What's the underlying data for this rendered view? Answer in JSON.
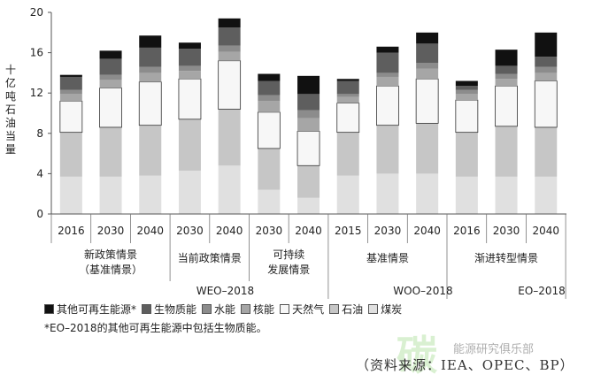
{
  "chart_data": {
    "type": "stacked-bar",
    "ylabel": "十亿吨石油当量",
    "ylim": [
      0,
      20
    ],
    "yticks": [
      0,
      4,
      8,
      12,
      16,
      20
    ],
    "grid": false,
    "legend_position": "bottom",
    "series": [
      {
        "name": "煤炭",
        "color": "#e0e0e0"
      },
      {
        "name": "石油",
        "color": "#c6c6c6"
      },
      {
        "name": "天然气",
        "color": "#f7f7f7"
      },
      {
        "name": "核能",
        "color": "#a6a6a6"
      },
      {
        "name": "水能",
        "color": "#8c8c8c"
      },
      {
        "name": "生物质能",
        "color": "#5e5e5e"
      },
      {
        "name": "其他可再生能源*",
        "color": "#111111"
      }
    ],
    "groups": [
      {
        "name": "新政策情景\n（基准情景）",
        "outlook": "WEO–2018",
        "bars": [
          {
            "year": "2016",
            "values": [
              3.7,
              4.4,
              3.1,
              0.7,
              0.4,
              1.3,
              0.2
            ]
          },
          {
            "year": "2030",
            "values": [
              3.7,
              4.9,
              3.9,
              0.8,
              0.5,
              1.6,
              0.8
            ]
          },
          {
            "year": "2040",
            "values": [
              3.8,
              5.0,
              4.3,
              0.9,
              0.6,
              1.9,
              1.2
            ]
          }
        ]
      },
      {
        "name": "当前政策情景",
        "outlook": "WEO–2018",
        "bars": [
          {
            "year": "2030",
            "values": [
              4.3,
              5.1,
              4.0,
              0.8,
              0.5,
              1.7,
              0.6
            ]
          },
          {
            "year": "2040",
            "values": [
              4.8,
              5.6,
              4.8,
              0.9,
              0.6,
              1.8,
              0.9
            ]
          }
        ]
      },
      {
        "name": "可持续\n发展情景",
        "outlook": "WEO–2018",
        "bars": [
          {
            "year": "2030",
            "values": [
              2.4,
              4.1,
              3.6,
              1.1,
              0.6,
              1.4,
              0.7
            ]
          },
          {
            "year": "2040",
            "values": [
              1.6,
              3.2,
              3.4,
              1.3,
              0.8,
              1.6,
              1.8
            ]
          }
        ]
      },
      {
        "name": "基准情景",
        "outlook": "WOO–2018",
        "bars": [
          {
            "year": "2015",
            "values": [
              3.8,
              4.3,
              2.9,
              0.6,
              0.3,
              1.3,
              0.2
            ]
          },
          {
            "year": "2030",
            "values": [
              4.0,
              4.8,
              3.9,
              0.9,
              0.4,
              2.0,
              0.6
            ]
          },
          {
            "year": "2040",
            "values": [
              4.0,
              5.0,
              4.4,
              1.0,
              0.6,
              1.9,
              1.1
            ]
          }
        ]
      },
      {
        "name": "渐进转型情景",
        "outlook": "EO–2018",
        "bars": [
          {
            "year": "2016",
            "values": [
              3.7,
              4.4,
              3.2,
              0.6,
              0.4,
              0.4,
              0.5
            ]
          },
          {
            "year": "2030",
            "values": [
              3.7,
              5.0,
              4.0,
              0.7,
              0.5,
              0.8,
              1.6
            ]
          },
          {
            "year": "2040",
            "values": [
              3.7,
              4.9,
              4.6,
              0.8,
              0.6,
              1.0,
              2.4
            ]
          }
        ]
      }
    ],
    "outlooks": [
      "WEO–2018",
      "WOO–2018",
      "EO–2018"
    ]
  },
  "legend_items": [
    "其他可再生能源*",
    "生物质能",
    "水能",
    "核能",
    "天然气",
    "石油",
    "煤炭"
  ],
  "footnote": "*EO–2018的其他可再生能源中包括生物质能。",
  "source": "（资料来源：IEA、OPEC、BP）",
  "watermark": "碳",
  "watermark_sub": "能源研究俱乐部"
}
